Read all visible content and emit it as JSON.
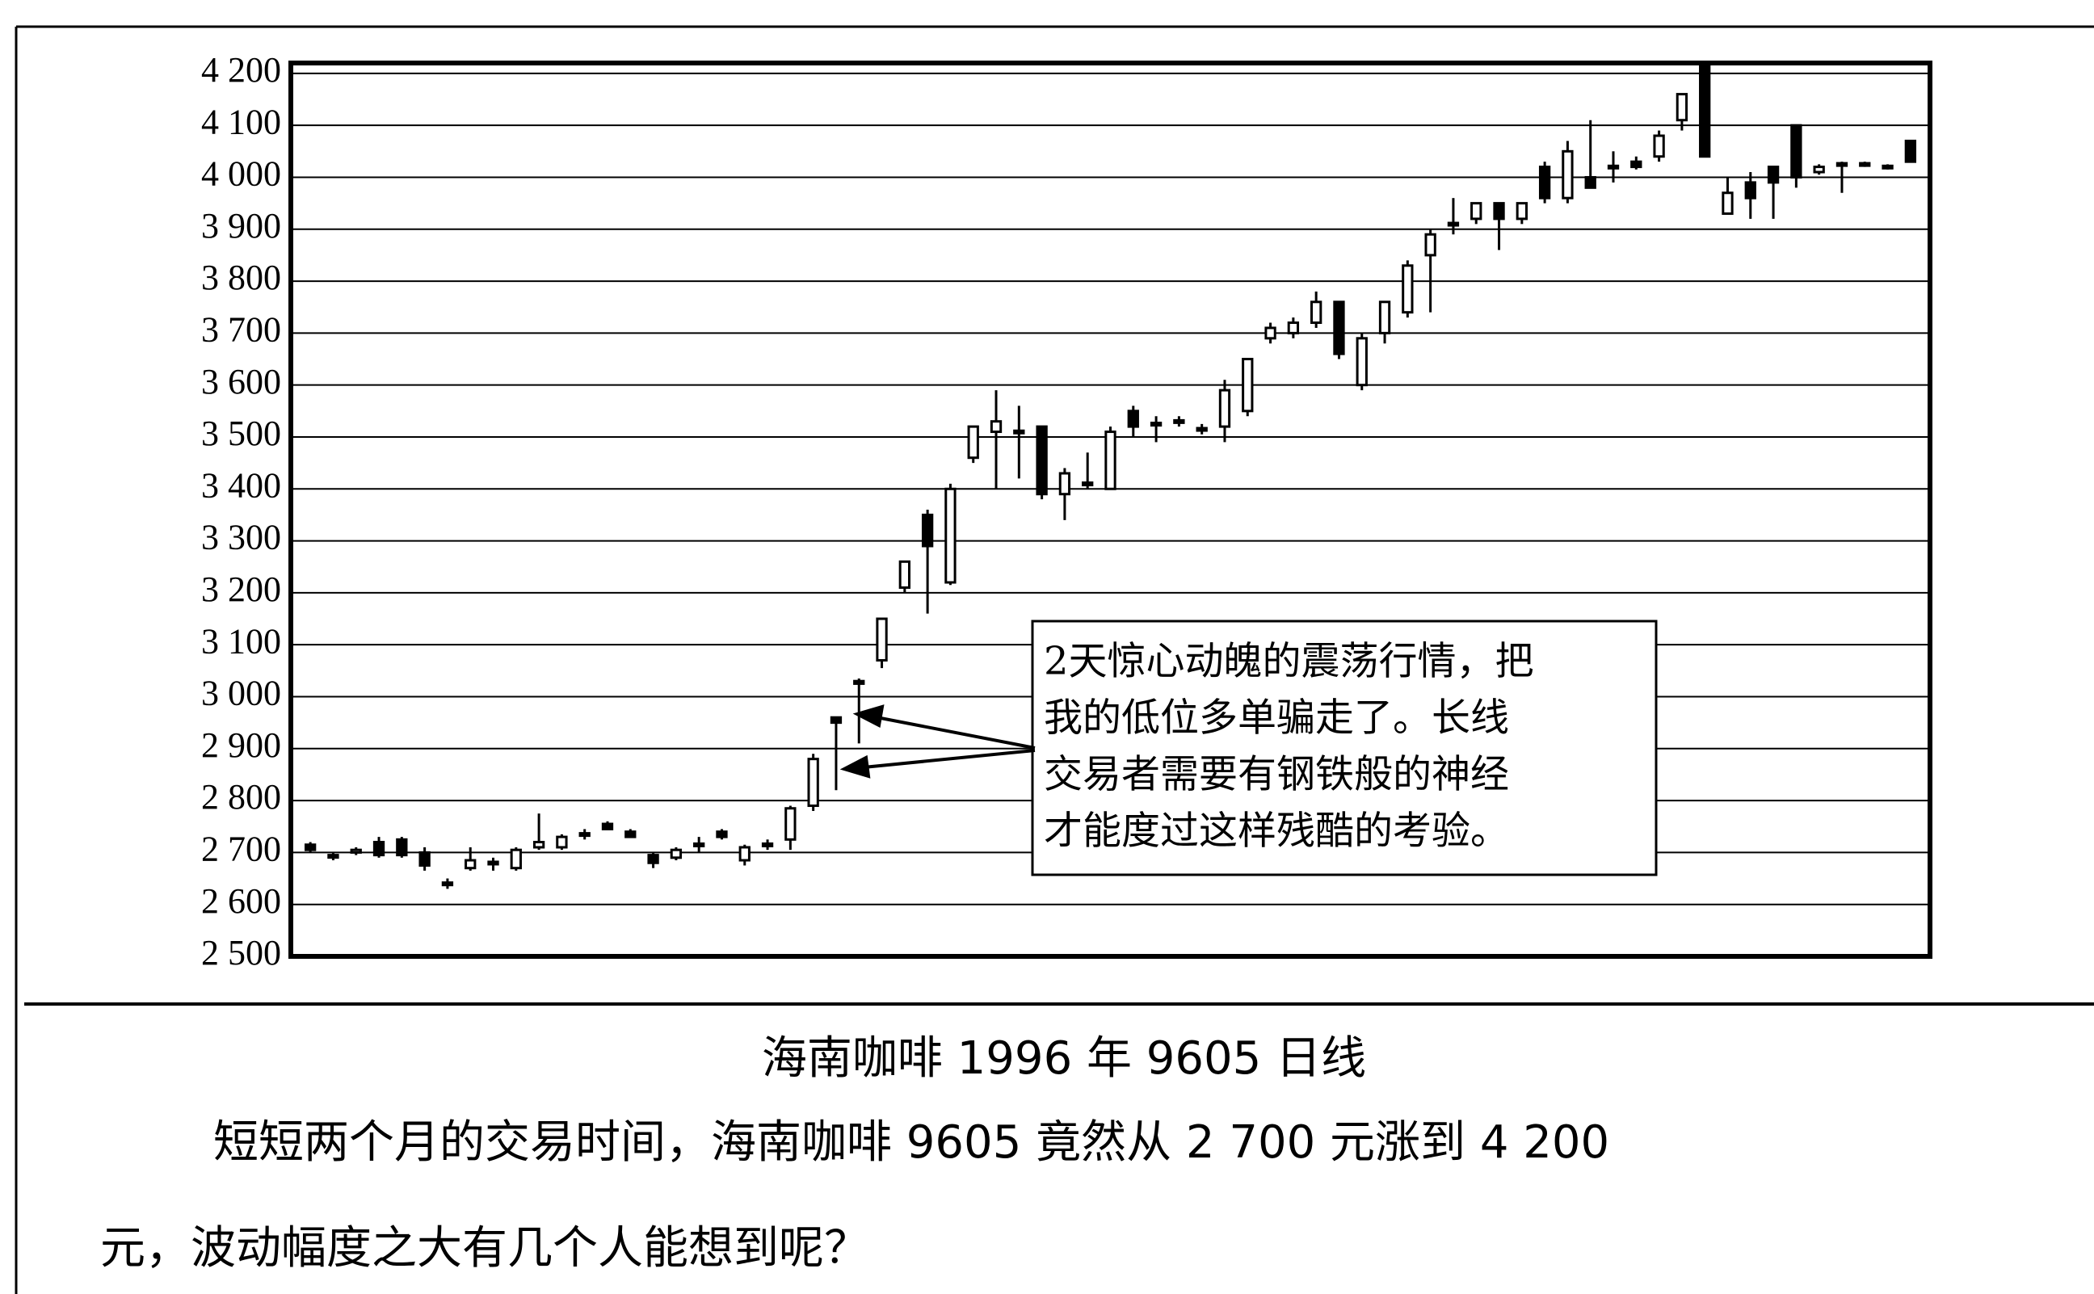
{
  "chart_data": {
    "type": "candlestick",
    "open": [
      2715,
      2695,
      2700,
      2720,
      2725,
      2700,
      2640,
      2670,
      2678,
      2670,
      2710,
      2710,
      2735,
      2755,
      2740,
      2695,
      2690,
      2715,
      2740,
      2685,
      2715,
      2725,
      2790,
      2960,
      3030,
      3070,
      3210,
      3350,
      3220,
      3460,
      3510,
      3510,
      3520,
      3390,
      3410,
      3400,
      3550,
      3525,
      3530,
      3515,
      3520,
      3550,
      3690,
      3700,
      3720,
      3760,
      3600,
      3700,
      3740,
      3850,
      3910,
      3920,
      3950,
      3920,
      4020,
      3960,
      4000,
      4020,
      4030,
      4040,
      4110,
      4220,
      3930,
      3990,
      4020,
      4100,
      4010,
      4025,
      4025,
      4020,
      4070
    ],
    "high": [
      2720,
      2700,
      2710,
      2730,
      2730,
      2710,
      2650,
      2710,
      2690,
      2710,
      2775,
      2735,
      2745,
      2760,
      2745,
      2700,
      2710,
      2730,
      2745,
      2715,
      2725,
      2790,
      2890,
      2960,
      3035,
      3150,
      3260,
      3360,
      3410,
      3520,
      3590,
      3560,
      3520,
      3440,
      3470,
      3520,
      3560,
      3540,
      3540,
      3525,
      3610,
      3650,
      3720,
      3730,
      3780,
      3760,
      3700,
      3760,
      3840,
      3900,
      3960,
      3950,
      3950,
      3950,
      4030,
      4070,
      4110,
      4050,
      4040,
      4090,
      4160,
      4220,
      4000,
      4010,
      4020,
      4100,
      4025,
      4030,
      4030,
      4025,
      4070
    ],
    "low": [
      2700,
      2685,
      2695,
      2690,
      2690,
      2665,
      2630,
      2665,
      2665,
      2665,
      2705,
      2705,
      2725,
      2745,
      2730,
      2670,
      2685,
      2700,
      2725,
      2675,
      2705,
      2705,
      2780,
      2820,
      2910,
      3055,
      3200,
      3160,
      3215,
      3450,
      3400,
      3420,
      3380,
      3340,
      3400,
      3400,
      3500,
      3490,
      3520,
      3505,
      3490,
      3540,
      3680,
      3690,
      3710,
      3650,
      3590,
      3680,
      3730,
      3740,
      3890,
      3910,
      3860,
      3910,
      3950,
      3950,
      3980,
      3990,
      4015,
      4030,
      4090,
      4040,
      3930,
      3920,
      3920,
      3980,
      4005,
      3970,
      4020,
      4015,
      4030
    ],
    "close": [
      2705,
      2693,
      2705,
      2695,
      2695,
      2675,
      2642,
      2685,
      2682,
      2705,
      2720,
      2730,
      2737,
      2745,
      2730,
      2680,
      2705,
      2717,
      2730,
      2710,
      2717,
      2785,
      2880,
      2950,
      3025,
      3150,
      3260,
      3290,
      3400,
      3520,
      3530,
      3512,
      3390,
      3430,
      3412,
      3510,
      3520,
      3527,
      3532,
      3517,
      3590,
      3650,
      3710,
      3720,
      3760,
      3660,
      3690,
      3760,
      3830,
      3890,
      3912,
      3950,
      3920,
      3950,
      3960,
      4050,
      3980,
      4022,
      4020,
      4080,
      4160,
      4040,
      3970,
      3960,
      3990,
      4000,
      4020,
      4027,
      4027,
      4022,
      4030
    ],
    "ylim": [
      2500,
      4220
    ],
    "yticks": [
      {
        "value": 2500,
        "label": "2 500"
      },
      {
        "value": 2600,
        "label": "2 600"
      },
      {
        "value": 2700,
        "label": "2 700"
      },
      {
        "value": 2800,
        "label": "2 800"
      },
      {
        "value": 2900,
        "label": "2 900"
      },
      {
        "value": 3000,
        "label": "3 000"
      },
      {
        "value": 3100,
        "label": "3 100"
      },
      {
        "value": 3200,
        "label": "3 200"
      },
      {
        "value": 3300,
        "label": "3 300"
      },
      {
        "value": 3400,
        "label": "3 400"
      },
      {
        "value": 3500,
        "label": "3 500"
      },
      {
        "value": 3600,
        "label": "3 600"
      },
      {
        "value": 3700,
        "label": "3 700"
      },
      {
        "value": 3800,
        "label": "3 800"
      },
      {
        "value": 3900,
        "label": "3 900"
      },
      {
        "value": 4000,
        "label": "4 000"
      },
      {
        "value": 4100,
        "label": "4 100"
      },
      {
        "value": 4200,
        "label": "4 200"
      }
    ],
    "grid": true,
    "up_color": "#ffffff",
    "down_color": "#000000",
    "annotation": [
      "2天惊心动魄的震荡行情，把",
      "我的低位多单骗走了。长线",
      "交易者需要有钢铁般的神经",
      "才能度过这样残酷的考验。"
    ],
    "caption_title": "海南咖啡 1996 年 9605 日线",
    "caption_text": [
      "短短两个月的交易时间，海南咖啡 9605 竟然从 2 700 元涨到 4 200",
      "元，波动幅度之大有几个人能想到呢？"
    ]
  }
}
